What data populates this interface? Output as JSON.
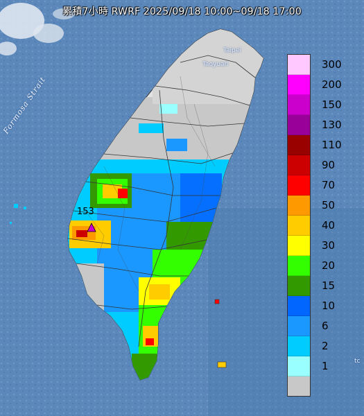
{
  "title": "累積7小時 RWRF 2025/09/18 10:00~09/18 17:00",
  "places": {
    "taipei": "Taipei",
    "taoyuan": "Taoyuan",
    "strait": "Formosa Strait",
    "peak": "153",
    "edge": "tc"
  },
  "legend": {
    "levels": [
      {
        "label": "300",
        "color": "#ffc8ff"
      },
      {
        "label": "200",
        "color": "#ff00ff"
      },
      {
        "label": "150",
        "color": "#cc00cc"
      },
      {
        "label": "130",
        "color": "#99009a"
      },
      {
        "label": "110",
        "color": "#990000"
      },
      {
        "label": "90",
        "color": "#cc0000"
      },
      {
        "label": "70",
        "color": "#ff0000"
      },
      {
        "label": "50",
        "color": "#ff9900"
      },
      {
        "label": "40",
        "color": "#ffcc00"
      },
      {
        "label": "30",
        "color": "#ffff00"
      },
      {
        "label": "20",
        "color": "#33ff00"
      },
      {
        "label": "15",
        "color": "#339900"
      },
      {
        "label": "10",
        "color": "#0066ff"
      },
      {
        "label": "6",
        "color": "#1a98ff"
      },
      {
        "label": "2",
        "color": "#00ccff"
      },
      {
        "label": "1",
        "color": "#99ffff"
      },
      {
        "label": "",
        "color": "#c8c8c8"
      }
    ]
  }
}
